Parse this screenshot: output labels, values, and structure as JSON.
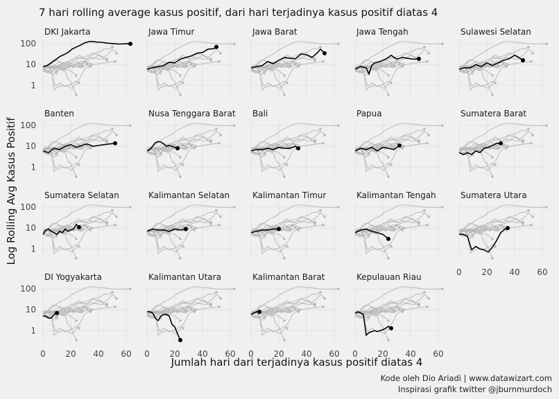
{
  "chart_data": {
    "type": "line",
    "title": "7 hari rolling average kasus positif, dari hari terjadinya kasus positif diatas 4",
    "xlabel": "Jumlah hari dari terjadinya kasus positif diatas 4",
    "ylabel": "Log Rolling Avg Kasus Positif",
    "caption": [
      "Kode oleh Dio Ariadi | www.datawizart.com",
      "Inspirasi grafik twitter @jburnmurdoch"
    ],
    "y_scale": "log10",
    "xlim": [
      0,
      63
    ],
    "ylim": [
      0.3,
      160
    ],
    "x_ticks": [
      0,
      20,
      40,
      60
    ],
    "y_ticks": [
      1,
      10,
      100
    ],
    "x_tick_labels": [
      "0",
      "20",
      "40",
      "60"
    ],
    "y_tick_labels": [
      "1",
      "10",
      "100"
    ],
    "grid": true,
    "layout": "facet-grid-5-columns",
    "highlight_color": "#000000",
    "background_color": "#b8b8b8",
    "series": [
      {
        "name": "DKI Jakarta",
        "x": [
          0,
          3,
          6,
          9,
          12,
          15,
          18,
          21,
          24,
          27,
          30,
          33,
          36,
          39,
          42,
          45,
          48,
          51,
          54,
          57,
          60,
          63
        ],
        "y": [
          8,
          9,
          12,
          17,
          24,
          30,
          38,
          55,
          70,
          85,
          110,
          125,
          128,
          120,
          118,
          110,
          105,
          100,
          98,
          97,
          100,
          99
        ]
      },
      {
        "name": "Jawa Timur",
        "x": [
          0,
          4,
          8,
          12,
          16,
          20,
          24,
          28,
          32,
          36,
          40,
          44,
          48,
          50
        ],
        "y": [
          6,
          7,
          8,
          9,
          13,
          12,
          18,
          22,
          26,
          35,
          38,
          55,
          58,
          70
        ]
      },
      {
        "name": "Jawa Barat",
        "x": [
          0,
          4,
          8,
          12,
          16,
          20,
          24,
          28,
          32,
          36,
          40,
          44,
          48,
          50,
          53
        ],
        "y": [
          7,
          8,
          9,
          14,
          11,
          16,
          22,
          20,
          19,
          32,
          30,
          22,
          38,
          55,
          35
        ]
      },
      {
        "name": "Jawa Tengah",
        "x": [
          0,
          4,
          8,
          10,
          12,
          14,
          18,
          22,
          26,
          30,
          34,
          38,
          42,
          46
        ],
        "y": [
          6,
          8,
          7,
          3.5,
          9,
          12,
          14,
          18,
          28,
          18,
          22,
          20,
          18,
          19
        ]
      },
      {
        "name": "Sulawesi Selatan",
        "x": [
          0,
          4,
          8,
          12,
          16,
          20,
          24,
          28,
          32,
          36,
          40,
          44,
          46
        ],
        "y": [
          6,
          7,
          7,
          10,
          8,
          12,
          9,
          12,
          16,
          19,
          28,
          20,
          16
        ]
      },
      {
        "name": "Banten",
        "x": [
          0,
          4,
          8,
          12,
          16,
          20,
          24,
          28,
          32,
          36,
          40,
          44,
          48,
          52
        ],
        "y": [
          6,
          5,
          8,
          7,
          10,
          12,
          9,
          11,
          13,
          10,
          11,
          12,
          13,
          14
        ]
      },
      {
        "name": "Nusa Tenggara Barat",
        "x": [
          0,
          2,
          4,
          6,
          8,
          10,
          12,
          14,
          16,
          18,
          20,
          22
        ],
        "y": [
          6,
          7,
          10,
          15,
          17,
          16,
          13,
          10,
          11,
          10,
          9,
          8
        ]
      },
      {
        "name": "Bali",
        "x": [
          0,
          4,
          8,
          12,
          16,
          20,
          24,
          28,
          32,
          34
        ],
        "y": [
          6,
          7,
          7,
          8,
          7,
          9,
          8,
          8,
          10,
          8
        ]
      },
      {
        "name": "Papua",
        "x": [
          0,
          4,
          8,
          12,
          16,
          20,
          24,
          28,
          32
        ],
        "y": [
          6,
          8,
          7,
          9,
          6,
          9,
          8,
          7,
          11
        ]
      },
      {
        "name": "Sumatera Barat",
        "x": [
          0,
          3,
          6,
          9,
          12,
          15,
          18,
          21,
          24,
          27,
          30
        ],
        "y": [
          5,
          4,
          5,
          4,
          6,
          5,
          8,
          9,
          11,
          14,
          14
        ]
      },
      {
        "name": "Sumatera Selatan",
        "x": [
          0,
          2,
          4,
          6,
          8,
          10,
          12,
          14,
          16,
          18,
          20,
          22,
          24,
          26
        ],
        "y": [
          5,
          8,
          9,
          7,
          6,
          5,
          7,
          6,
          9,
          7,
          8,
          9,
          15,
          11
        ]
      },
      {
        "name": "Kalimantan Selatan",
        "x": [
          0,
          4,
          8,
          12,
          16,
          20,
          24,
          28
        ],
        "y": [
          7,
          9,
          8,
          8,
          7,
          9,
          8,
          9
        ]
      },
      {
        "name": "Kalimantan Timur",
        "x": [
          0,
          4,
          8,
          12,
          16,
          20
        ],
        "y": [
          6,
          7,
          8,
          8,
          9,
          9
        ]
      },
      {
        "name": "Kalimantan Tengah",
        "x": [
          0,
          4,
          8,
          12,
          16,
          20,
          24
        ],
        "y": [
          6,
          8,
          9,
          7,
          6,
          5,
          3
        ]
      },
      {
        "name": "Sumatera Utara",
        "x": [
          0,
          3,
          6,
          9,
          12,
          15,
          18,
          21,
          24,
          27,
          30,
          33,
          35
        ],
        "y": [
          5,
          5,
          4,
          0.9,
          1.3,
          1,
          0.9,
          0.7,
          1.2,
          2.5,
          6,
          9,
          10
        ]
      },
      {
        "name": "DI Yogyakarta",
        "x": [
          0,
          2,
          4,
          6,
          8,
          10
        ],
        "y": [
          5,
          5,
          4,
          4,
          6,
          7
        ]
      },
      {
        "name": "Kalimantan Utara",
        "x": [
          0,
          2,
          4,
          6,
          8,
          10,
          12,
          14,
          16,
          18,
          20,
          22,
          24
        ],
        "y": [
          8,
          8,
          7,
          4,
          3,
          5,
          6,
          6,
          5,
          2,
          1.5,
          0.7,
          0.35
        ]
      },
      {
        "name": "Kalimantan Barat",
        "x": [
          0,
          2,
          4,
          6
        ],
        "y": [
          6,
          7,
          8,
          8
        ]
      },
      {
        "name": "Kepulauan Riau",
        "x": [
          0,
          2,
          4,
          6,
          8,
          10,
          12,
          14,
          16,
          18,
          20,
          22,
          24,
          26
        ],
        "y": [
          7,
          8,
          7,
          6,
          0.6,
          0.8,
          0.9,
          1,
          0.9,
          1,
          1.1,
          1.3,
          1.6,
          1.3
        ]
      }
    ]
  }
}
